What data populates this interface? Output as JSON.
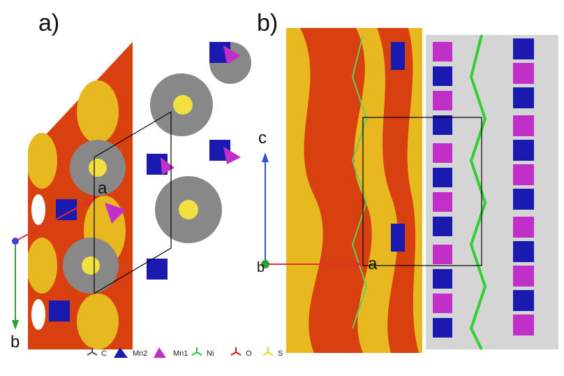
{
  "panels": [
    {
      "label": "a)",
      "axes": {
        "x": "a",
        "y": "b"
      }
    },
    {
      "label": "b)",
      "axes": {
        "x": "a",
        "y": "c",
        "z": "b"
      }
    }
  ],
  "legend": [
    {
      "label": "C",
      "color": "#555555",
      "icon": "stick-icon"
    },
    {
      "label": "Mn2",
      "color": "#1a1ab0",
      "icon": "tetrahedron-icon"
    },
    {
      "label": "Mn1",
      "color": "#c030c8",
      "icon": "tetrahedron-icon"
    },
    {
      "label": "Ni",
      "color": "#30c030",
      "icon": "stick-icon"
    },
    {
      "label": "O",
      "color": "#d01818",
      "icon": "stick-icon"
    },
    {
      "label": "S",
      "color": "#d8d820",
      "icon": "stick-icon"
    }
  ],
  "colors": {
    "pore_outer": "#d8400f",
    "pore_inner": "#e8b820",
    "axis_a": "#e03030",
    "axis_b": "#30a030",
    "axis_c": "#3050e0"
  }
}
